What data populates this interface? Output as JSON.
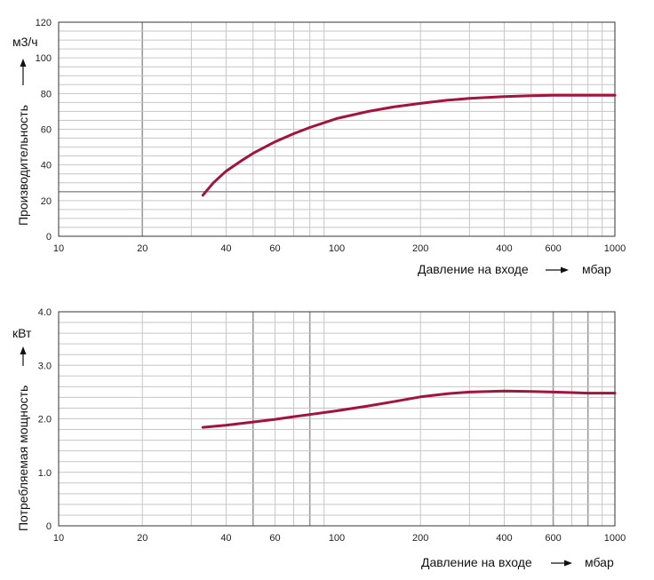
{
  "chart_data": [
    {
      "type": "line",
      "x_scale": "log",
      "xlim": [
        10,
        1000
      ],
      "ylim": [
        0,
        120
      ],
      "x_ticks": [
        "10",
        "20",
        "40",
        "60",
        "100",
        "200",
        "400",
        "600",
        "1000"
      ],
      "y_ticks": [
        "0",
        "20",
        "40",
        "60",
        "80",
        "100",
        "120"
      ],
      "xlabel": "Давление на входе",
      "xunit": "мбар",
      "ylabel": "Производительность",
      "yunit": "м3/ч",
      "grid": true,
      "color": "#a3143c",
      "series": [
        {
          "x": [
            33,
            36,
            40,
            45,
            50,
            60,
            70,
            80,
            100,
            130,
            160,
            200,
            250,
            300,
            400,
            500,
            600,
            700,
            800,
            1000
          ],
          "y": [
            23,
            30,
            36.5,
            42,
            46.5,
            53,
            57.5,
            61,
            66,
            70,
            72.5,
            74.5,
            76.3,
            77.3,
            78.3,
            78.8,
            79,
            79,
            79,
            79
          ]
        }
      ]
    },
    {
      "type": "line",
      "x_scale": "log",
      "xlim": [
        10,
        1000
      ],
      "ylim": [
        0,
        4.0
      ],
      "x_ticks": [
        "10",
        "20",
        "40",
        "60",
        "100",
        "200",
        "400",
        "600",
        "1000"
      ],
      "y_ticks": [
        "0",
        "1.0",
        "2.0",
        "3.0",
        "4.0"
      ],
      "xlabel": "Давление на входе",
      "xunit": "мбар",
      "ylabel": "Потребляемая мощность",
      "yunit": "кВт",
      "grid": true,
      "color": "#a3143c",
      "series": [
        {
          "x": [
            33,
            40,
            50,
            60,
            70,
            80,
            100,
            130,
            160,
            200,
            250,
            300,
            400,
            500,
            600,
            700,
            800,
            1000
          ],
          "y": [
            1.84,
            1.88,
            1.94,
            1.99,
            2.04,
            2.08,
            2.15,
            2.24,
            2.32,
            2.41,
            2.47,
            2.5,
            2.52,
            2.51,
            2.5,
            2.49,
            2.48,
            2.48
          ]
        }
      ]
    }
  ]
}
